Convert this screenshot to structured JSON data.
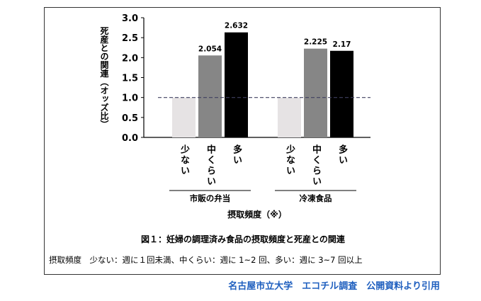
{
  "chart_data": {
    "type": "bar",
    "ylabel": "死産との関連（オッズ比）",
    "xlabel": "摂取頻度（※）",
    "ylim": [
      0,
      3.0
    ],
    "yticks": [
      "0.0",
      "0.5",
      "1.0",
      "1.5",
      "2.0",
      "2.5",
      "3.0"
    ],
    "reference_line": 1.0,
    "groups": [
      {
        "label": "市販の弁当",
        "bars": [
          {
            "category": "少ない",
            "value": 1.0,
            "label": "",
            "color": "#e6e3e4"
          },
          {
            "category": "中くらい",
            "value": 2.054,
            "label": "2.054",
            "color": "#868686"
          },
          {
            "category": "多い",
            "value": 2.632,
            "label": "2.632",
            "color": "#000000"
          }
        ]
      },
      {
        "label": "冷凍食品",
        "bars": [
          {
            "category": "少ない",
            "value": 1.0,
            "label": "",
            "color": "#e6e3e4"
          },
          {
            "category": "中くらい",
            "value": 2.225,
            "label": "2.225",
            "color": "#868686"
          },
          {
            "category": "多い",
            "value": 2.17,
            "label": "2.17",
            "color": "#000000"
          }
        ]
      }
    ]
  },
  "caption": "図１：妊婦の調理済み食品の摂取頻度と死産との関連",
  "note": "摂取頻度　少ない：週に１回未満、中くらい：週に 1~2 回、多い：週に 3~7 回以上",
  "footer": "名古屋市立大学　エコチル調査　公開資料より引用"
}
